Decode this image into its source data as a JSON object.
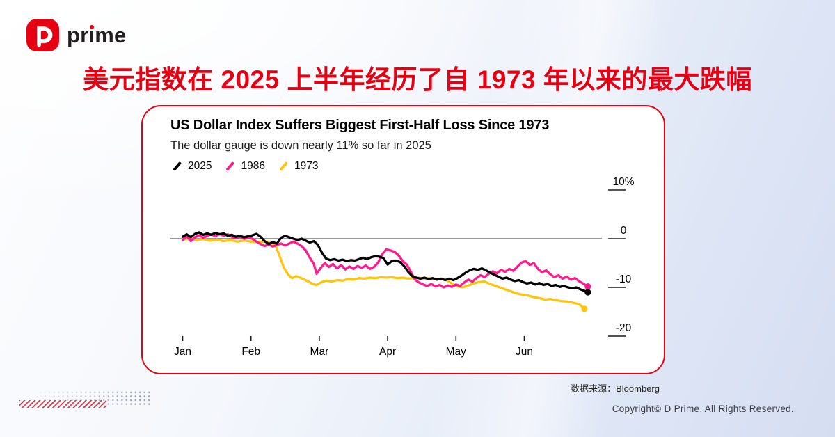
{
  "brand": {
    "wordmark": "prime"
  },
  "headline": "美元指数在 2025 上半年经历了自 1973 年以来的最大跌幅",
  "chart_data": {
    "type": "line",
    "title": "US Dollar Index Suffers Biggest First-Half Loss Since 1973",
    "subtitle": "The dollar gauge is down nearly 11% so far in 2025",
    "x_ticks": [
      "Jan",
      "Feb",
      "Mar",
      "Apr",
      "May",
      "Jun"
    ],
    "x_unit": "months since start of year (0 = Jan, 6 = end of Jun)",
    "y_ticks": [
      {
        "label": "10%",
        "value": 10
      },
      {
        "label": "0",
        "value": 0
      },
      {
        "label": "-10",
        "value": -10
      },
      {
        "label": "-20",
        "value": -20
      }
    ],
    "ylim": [
      -22,
      12
    ],
    "xlim": [
      0,
      6.1
    ],
    "grid": "zero baseline only",
    "legend_position": "top-left under subtitle",
    "series": [
      {
        "name": "2025",
        "color": "#000000",
        "end_dot": true,
        "points": [
          [
            0.0,
            0.4
          ],
          [
            0.06,
            0.9
          ],
          [
            0.12,
            0.3
          ],
          [
            0.18,
            1.0
          ],
          [
            0.24,
            1.3
          ],
          [
            0.3,
            0.8
          ],
          [
            0.36,
            1.1
          ],
          [
            0.42,
            0.8
          ],
          [
            0.48,
            1.2
          ],
          [
            0.54,
            0.9
          ],
          [
            0.6,
            1.1
          ],
          [
            0.66,
            0.6
          ],
          [
            0.72,
            0.8
          ],
          [
            0.78,
            0.4
          ],
          [
            0.84,
            0.6
          ],
          [
            0.9,
            0.3
          ],
          [
            0.96,
            0.5
          ],
          [
            1.02,
            0.7
          ],
          [
            1.08,
            1.0
          ],
          [
            1.14,
            0.4
          ],
          [
            1.2,
            -0.5
          ],
          [
            1.26,
            -1.1
          ],
          [
            1.32,
            -0.7
          ],
          [
            1.38,
            -1.0
          ],
          [
            1.44,
            0.2
          ],
          [
            1.5,
            0.6
          ],
          [
            1.56,
            0.3
          ],
          [
            1.62,
            0.0
          ],
          [
            1.68,
            -0.3
          ],
          [
            1.74,
            0.0
          ],
          [
            1.8,
            -0.4
          ],
          [
            1.86,
            -0.8
          ],
          [
            1.92,
            -0.5
          ],
          [
            1.98,
            -1.3
          ],
          [
            2.04,
            -2.9
          ],
          [
            2.1,
            -4.1
          ],
          [
            2.16,
            -4.4
          ],
          [
            2.22,
            -4.2
          ],
          [
            2.28,
            -4.5
          ],
          [
            2.34,
            -4.3
          ],
          [
            2.4,
            -4.6
          ],
          [
            2.46,
            -4.4
          ],
          [
            2.52,
            -4.5
          ],
          [
            2.58,
            -4.2
          ],
          [
            2.64,
            -3.9
          ],
          [
            2.7,
            -4.2
          ],
          [
            2.76,
            -3.8
          ],
          [
            2.82,
            -3.6
          ],
          [
            2.88,
            -3.7
          ],
          [
            2.94,
            -4.0
          ],
          [
            3.0,
            -5.3
          ],
          [
            3.06,
            -4.6
          ],
          [
            3.12,
            -4.5
          ],
          [
            3.18,
            -4.8
          ],
          [
            3.24,
            -5.6
          ],
          [
            3.3,
            -6.8
          ],
          [
            3.36,
            -7.7
          ],
          [
            3.42,
            -8.0
          ],
          [
            3.48,
            -8.2
          ],
          [
            3.54,
            -8.0
          ],
          [
            3.6,
            -8.3
          ],
          [
            3.66,
            -8.1
          ],
          [
            3.72,
            -8.4
          ],
          [
            3.78,
            -8.2
          ],
          [
            3.84,
            -8.5
          ],
          [
            3.9,
            -8.2
          ],
          [
            3.96,
            -8.5
          ],
          [
            4.02,
            -8.1
          ],
          [
            4.08,
            -7.6
          ],
          [
            4.14,
            -7.0
          ],
          [
            4.2,
            -6.5
          ],
          [
            4.26,
            -6.2
          ],
          [
            4.32,
            -6.4
          ],
          [
            4.38,
            -6.1
          ],
          [
            4.44,
            -6.5
          ],
          [
            4.5,
            -7.0
          ],
          [
            4.56,
            -7.4
          ],
          [
            4.62,
            -7.8
          ],
          [
            4.68,
            -8.2
          ],
          [
            4.74,
            -8.0
          ],
          [
            4.8,
            -8.4
          ],
          [
            4.86,
            -8.7
          ],
          [
            4.92,
            -8.5
          ],
          [
            4.98,
            -8.9
          ],
          [
            5.04,
            -9.2
          ],
          [
            5.1,
            -9.0
          ],
          [
            5.16,
            -9.4
          ],
          [
            5.22,
            -9.1
          ],
          [
            5.28,
            -9.5
          ],
          [
            5.34,
            -9.3
          ],
          [
            5.4,
            -9.7
          ],
          [
            5.46,
            -9.5
          ],
          [
            5.52,
            -9.9
          ],
          [
            5.58,
            -9.7
          ],
          [
            5.64,
            -10.0
          ],
          [
            5.7,
            -10.2
          ],
          [
            5.76,
            -10.0
          ],
          [
            5.82,
            -10.4
          ],
          [
            5.88,
            -10.7
          ],
          [
            5.93,
            -11.0
          ]
        ]
      },
      {
        "name": "1986",
        "color": "#ff1a8e",
        "end_dot": true,
        "points": [
          [
            0.0,
            -0.3
          ],
          [
            0.06,
            0.5
          ],
          [
            0.12,
            -0.5
          ],
          [
            0.18,
            0.3
          ],
          [
            0.24,
            0.7
          ],
          [
            0.3,
            0.2
          ],
          [
            0.36,
            0.6
          ],
          [
            0.42,
            0.9
          ],
          [
            0.48,
            0.5
          ],
          [
            0.54,
            1.0
          ],
          [
            0.6,
            0.6
          ],
          [
            0.66,
            0.9
          ],
          [
            0.72,
            0.4
          ],
          [
            0.78,
            0.1
          ],
          [
            0.84,
            0.4
          ],
          [
            0.9,
            0.0
          ],
          [
            0.96,
            0.2
          ],
          [
            1.02,
            0.0
          ],
          [
            1.08,
            -0.6
          ],
          [
            1.14,
            -1.1
          ],
          [
            1.2,
            -1.5
          ],
          [
            1.26,
            -1.2
          ],
          [
            1.32,
            -1.6
          ],
          [
            1.38,
            -1.3
          ],
          [
            1.44,
            -1.0
          ],
          [
            1.5,
            -1.4
          ],
          [
            1.56,
            -1.0
          ],
          [
            1.62,
            -0.6
          ],
          [
            1.68,
            -1.0
          ],
          [
            1.74,
            -1.5
          ],
          [
            1.8,
            -2.4
          ],
          [
            1.86,
            -3.9
          ],
          [
            1.92,
            -5.2
          ],
          [
            1.96,
            -7.2
          ],
          [
            2.02,
            -6.0
          ],
          [
            2.08,
            -5.0
          ],
          [
            2.14,
            -5.8
          ],
          [
            2.2,
            -5.2
          ],
          [
            2.26,
            -6.1
          ],
          [
            2.32,
            -5.4
          ],
          [
            2.38,
            -6.3
          ],
          [
            2.44,
            -5.7
          ],
          [
            2.5,
            -6.2
          ],
          [
            2.56,
            -5.6
          ],
          [
            2.62,
            -6.0
          ],
          [
            2.68,
            -5.5
          ],
          [
            2.74,
            -6.2
          ],
          [
            2.8,
            -5.8
          ],
          [
            2.86,
            -4.9
          ],
          [
            2.92,
            -3.2
          ],
          [
            2.98,
            -2.2
          ],
          [
            3.04,
            -2.4
          ],
          [
            3.1,
            -2.7
          ],
          [
            3.16,
            -3.4
          ],
          [
            3.22,
            -4.6
          ],
          [
            3.28,
            -5.3
          ],
          [
            3.34,
            -6.8
          ],
          [
            3.4,
            -8.4
          ],
          [
            3.46,
            -9.0
          ],
          [
            3.52,
            -9.4
          ],
          [
            3.58,
            -9.7
          ],
          [
            3.64,
            -9.3
          ],
          [
            3.7,
            -9.8
          ],
          [
            3.76,
            -9.5
          ],
          [
            3.82,
            -10.0
          ],
          [
            3.88,
            -9.6
          ],
          [
            3.94,
            -9.9
          ],
          [
            4.0,
            -9.4
          ],
          [
            4.06,
            -9.7
          ],
          [
            4.12,
            -9.0
          ],
          [
            4.18,
            -8.4
          ],
          [
            4.24,
            -8.8
          ],
          [
            4.3,
            -8.1
          ],
          [
            4.36,
            -7.5
          ],
          [
            4.42,
            -7.9
          ],
          [
            4.48,
            -7.2
          ],
          [
            4.54,
            -6.7
          ],
          [
            4.6,
            -7.1
          ],
          [
            4.66,
            -6.4
          ],
          [
            4.72,
            -6.8
          ],
          [
            4.78,
            -6.2
          ],
          [
            4.84,
            -6.6
          ],
          [
            4.9,
            -5.7
          ],
          [
            4.96,
            -4.9
          ],
          [
            5.02,
            -4.6
          ],
          [
            5.08,
            -5.4
          ],
          [
            5.14,
            -5.0
          ],
          [
            5.2,
            -6.2
          ],
          [
            5.26,
            -6.9
          ],
          [
            5.32,
            -6.5
          ],
          [
            5.38,
            -7.3
          ],
          [
            5.44,
            -7.9
          ],
          [
            5.5,
            -7.5
          ],
          [
            5.56,
            -8.2
          ],
          [
            5.62,
            -7.8
          ],
          [
            5.68,
            -8.4
          ],
          [
            5.74,
            -8.1
          ],
          [
            5.8,
            -8.7
          ],
          [
            5.86,
            -9.2
          ],
          [
            5.93,
            -9.8
          ]
        ]
      },
      {
        "name": "1973",
        "color": "#ffc40d",
        "end_dot": true,
        "points": [
          [
            0.0,
            -0.2
          ],
          [
            0.1,
            0.1
          ],
          [
            0.2,
            -0.3
          ],
          [
            0.3,
            -0.1
          ],
          [
            0.4,
            -0.4
          ],
          [
            0.5,
            -0.2
          ],
          [
            0.6,
            -0.5
          ],
          [
            0.7,
            -0.3
          ],
          [
            0.8,
            -0.6
          ],
          [
            0.9,
            -0.4
          ],
          [
            1.0,
            -0.6
          ],
          [
            1.1,
            -0.7
          ],
          [
            1.2,
            -0.6
          ],
          [
            1.3,
            -0.8
          ],
          [
            1.36,
            -1.4
          ],
          [
            1.42,
            -3.6
          ],
          [
            1.48,
            -5.9
          ],
          [
            1.54,
            -7.3
          ],
          [
            1.6,
            -8.1
          ],
          [
            1.66,
            -7.7
          ],
          [
            1.72,
            -8.0
          ],
          [
            1.78,
            -8.4
          ],
          [
            1.84,
            -8.8
          ],
          [
            1.9,
            -9.3
          ],
          [
            1.96,
            -9.5
          ],
          [
            2.02,
            -9.0
          ],
          [
            2.1,
            -8.6
          ],
          [
            2.18,
            -8.8
          ],
          [
            2.26,
            -8.5
          ],
          [
            2.34,
            -8.6
          ],
          [
            2.42,
            -8.3
          ],
          [
            2.5,
            -8.4
          ],
          [
            2.58,
            -8.1
          ],
          [
            2.66,
            -8.2
          ],
          [
            2.74,
            -8.0
          ],
          [
            2.82,
            -8.1
          ],
          [
            2.9,
            -7.9
          ],
          [
            2.98,
            -8.0
          ],
          [
            3.06,
            -7.9
          ],
          [
            3.14,
            -8.1
          ],
          [
            3.22,
            -8.0
          ],
          [
            3.3,
            -8.2
          ],
          [
            3.38,
            -8.1
          ],
          [
            3.46,
            -8.0
          ],
          [
            3.54,
            -8.2
          ],
          [
            3.62,
            -8.1
          ],
          [
            3.7,
            -8.3
          ],
          [
            3.78,
            -8.2
          ],
          [
            3.86,
            -8.5
          ],
          [
            3.94,
            -9.2
          ],
          [
            4.02,
            -9.8
          ],
          [
            4.1,
            -10.0
          ],
          [
            4.18,
            -9.6
          ],
          [
            4.26,
            -9.2
          ],
          [
            4.34,
            -8.9
          ],
          [
            4.42,
            -8.8
          ],
          [
            4.5,
            -9.3
          ],
          [
            4.58,
            -9.7
          ],
          [
            4.66,
            -10.1
          ],
          [
            4.74,
            -10.5
          ],
          [
            4.82,
            -10.9
          ],
          [
            4.9,
            -11.3
          ],
          [
            4.98,
            -11.5
          ],
          [
            5.06,
            -11.7
          ],
          [
            5.14,
            -12.0
          ],
          [
            5.22,
            -12.2
          ],
          [
            5.3,
            -12.5
          ],
          [
            5.38,
            -12.4
          ],
          [
            5.46,
            -12.6
          ],
          [
            5.54,
            -12.8
          ],
          [
            5.62,
            -12.9
          ],
          [
            5.7,
            -13.1
          ],
          [
            5.76,
            -13.3
          ],
          [
            5.82,
            -13.6
          ],
          [
            5.88,
            -14.4
          ]
        ]
      }
    ]
  },
  "footer": {
    "source": "数据来源：Bloomberg",
    "copyright": "Copyright© D Prime. All Rights Reserved."
  },
  "theme": {
    "accent_red": "#e60012",
    "pink_1986": "#ff1a8e",
    "yellow_1973": "#ffc40d",
    "black_2025": "#000000",
    "axis_gray": "#74757a"
  }
}
